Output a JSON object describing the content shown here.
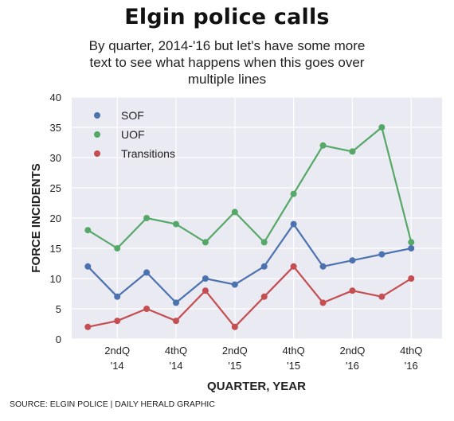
{
  "header": {
    "title": "Elgin police calls",
    "subtitle": "By quarter, 2014-'16 but let's have some more text to see what happens when this goes over multiple lines"
  },
  "footer": {
    "source": "SOURCE: ELGIN POLICE | DAILY HERALD GRAPHIC"
  },
  "chart_data": {
    "type": "line",
    "title": "Elgin police calls",
    "subtitle": "By quarter, 2014-'16 but let's have some more text to see what happens when this goes over multiple lines",
    "xlabel": "QUARTER, YEAR",
    "ylabel": "FORCE INCIDENTS",
    "ylim": [
      0,
      40
    ],
    "yticks": [
      0,
      5,
      10,
      15,
      20,
      25,
      30,
      35,
      40
    ],
    "x_count": 13,
    "xticks": [
      {
        "index": 1,
        "line1": "2ndQ",
        "line2": "'14"
      },
      {
        "index": 3,
        "line1": "4thQ",
        "line2": "'14"
      },
      {
        "index": 5,
        "line1": "2ndQ",
        "line2": "'15"
      },
      {
        "index": 7,
        "line1": "4thQ",
        "line2": "'15"
      },
      {
        "index": 9,
        "line1": "2ndQ",
        "line2": "'16"
      },
      {
        "index": 11,
        "line1": "4thQ",
        "line2": "'16"
      }
    ],
    "grid": true,
    "legend_position": "top-left",
    "series": [
      {
        "name": "SOF",
        "color": "#4c72b0",
        "values": [
          12,
          7,
          11,
          6,
          10,
          9,
          12,
          19,
          12,
          13,
          14,
          15
        ]
      },
      {
        "name": "UOF",
        "color": "#55a868",
        "values": [
          18,
          15,
          20,
          19,
          16,
          21,
          16,
          24,
          32,
          31,
          35,
          16
        ]
      },
      {
        "name": "Transitions",
        "color": "#c44e52",
        "values": [
          2,
          3,
          5,
          3,
          8,
          2,
          7,
          12,
          6,
          8,
          7,
          10
        ]
      }
    ],
    "background": "#eaeaf2"
  }
}
